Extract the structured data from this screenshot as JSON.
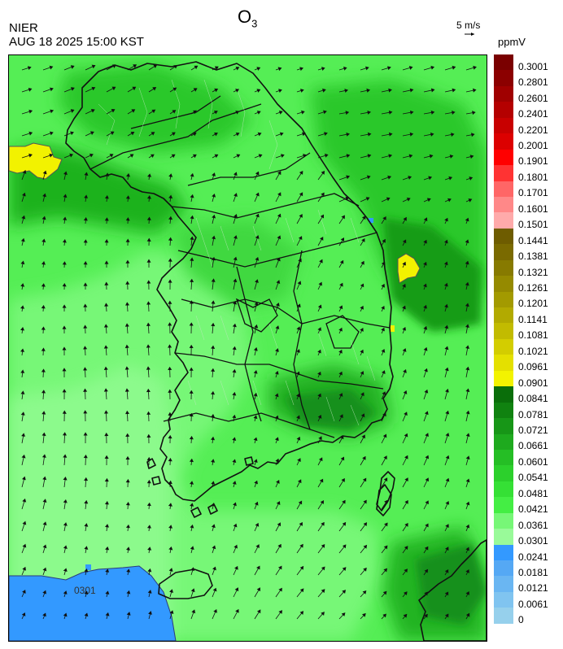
{
  "header": {
    "agency": "NIER",
    "datetime": "AUG 18 2025 15:00 KST",
    "title_main": "O",
    "title_sub": "3",
    "wind_scale": "5 m/s",
    "unit": "ppmV"
  },
  "map": {
    "contour_label": "0301",
    "colors": {
      "blue": "#3399ff",
      "light_green": "#77f777",
      "green": "#3fe23f",
      "mid_green": "#1fc81f",
      "dark_green": "#129a12",
      "yellow": "#f2f200",
      "land_outline": "#111111",
      "district_line": "#bfe6bf"
    },
    "region_names": [
      "korean-peninsula",
      "jeju-island",
      "ulleung-island",
      "tsushima-island",
      "japan-kyushu"
    ]
  },
  "colorbar": {
    "labels": [
      "0.3001",
      "0.2801",
      "0.2601",
      "0.2401",
      "0.2201",
      "0.2001",
      "0.1901",
      "0.1801",
      "0.1701",
      "0.1601",
      "0.1501",
      "0.1441",
      "0.1381",
      "0.1321",
      "0.1261",
      "0.1201",
      "0.1141",
      "0.1081",
      "0.1021",
      "0.0961",
      "0.0901",
      "0.0841",
      "0.0781",
      "0.0721",
      "0.0661",
      "0.0601",
      "0.0541",
      "0.0481",
      "0.0421",
      "0.0361",
      "0.0301",
      "0.0241",
      "0.0181",
      "0.0121",
      "0.0061",
      "0"
    ],
    "colors": [
      "#7a0000",
      "#8c0000",
      "#a00000",
      "#b40000",
      "#c80000",
      "#dc0000",
      "#ff0000",
      "#ff3333",
      "#ff6666",
      "#ff8888",
      "#ffaaaa",
      "#6e5c00",
      "#7a6a00",
      "#877a00",
      "#958a00",
      "#a39a00",
      "#b2aa00",
      "#c2bb00",
      "#d3cd00",
      "#e4e000",
      "#f3f300",
      "#0a6e0a",
      "#108210",
      "#179617",
      "#1eaa1e",
      "#25be25",
      "#2cd02c",
      "#35e035",
      "#44ee44",
      "#77f777",
      "#99fa99",
      "#3399ff",
      "#55a8f4",
      "#6ab6f2",
      "#80c4f0",
      "#96d0ec"
    ]
  }
}
